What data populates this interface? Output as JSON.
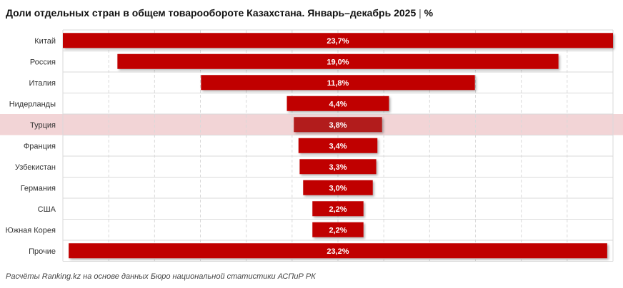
{
  "header": {
    "title": "Доли отдельных стран в общем товарообороте Казахстана. Январь–декабрь 2025",
    "separator": "|",
    "unit": "%"
  },
  "footer": {
    "source": "Расчёты Ranking.kz на основе данных Бюро национальной статистики АСПиР РК"
  },
  "colors": {
    "bar": "#c00000",
    "bar_highlight": "#b21a1a",
    "highlight_row": "#f2d4d6",
    "grid": "#d9d9d9",
    "label_text": "#ffffff"
  },
  "chart_data": {
    "type": "bar",
    "orientation": "horizontal",
    "layout": "centered-funnel",
    "categories": [
      "Китай",
      "Россия",
      "Италия",
      "Нидерланды",
      "Турция",
      "Франция",
      "Узбекистан",
      "Германия",
      "США",
      "Южная Корея",
      "Прочие"
    ],
    "values": [
      23.7,
      19.0,
      11.8,
      4.4,
      3.8,
      3.4,
      3.3,
      3.0,
      2.2,
      2.2,
      23.2
    ],
    "data_labels": [
      "23,7%",
      "19,0%",
      "11,8%",
      "4,4%",
      "3,8%",
      "3,4%",
      "3,3%",
      "3,0%",
      "2,2%",
      "2,2%",
      "23,2%"
    ],
    "highlight_category": "Турция",
    "xlim": [
      0,
      23.7
    ],
    "grid": true,
    "legend": "none"
  }
}
